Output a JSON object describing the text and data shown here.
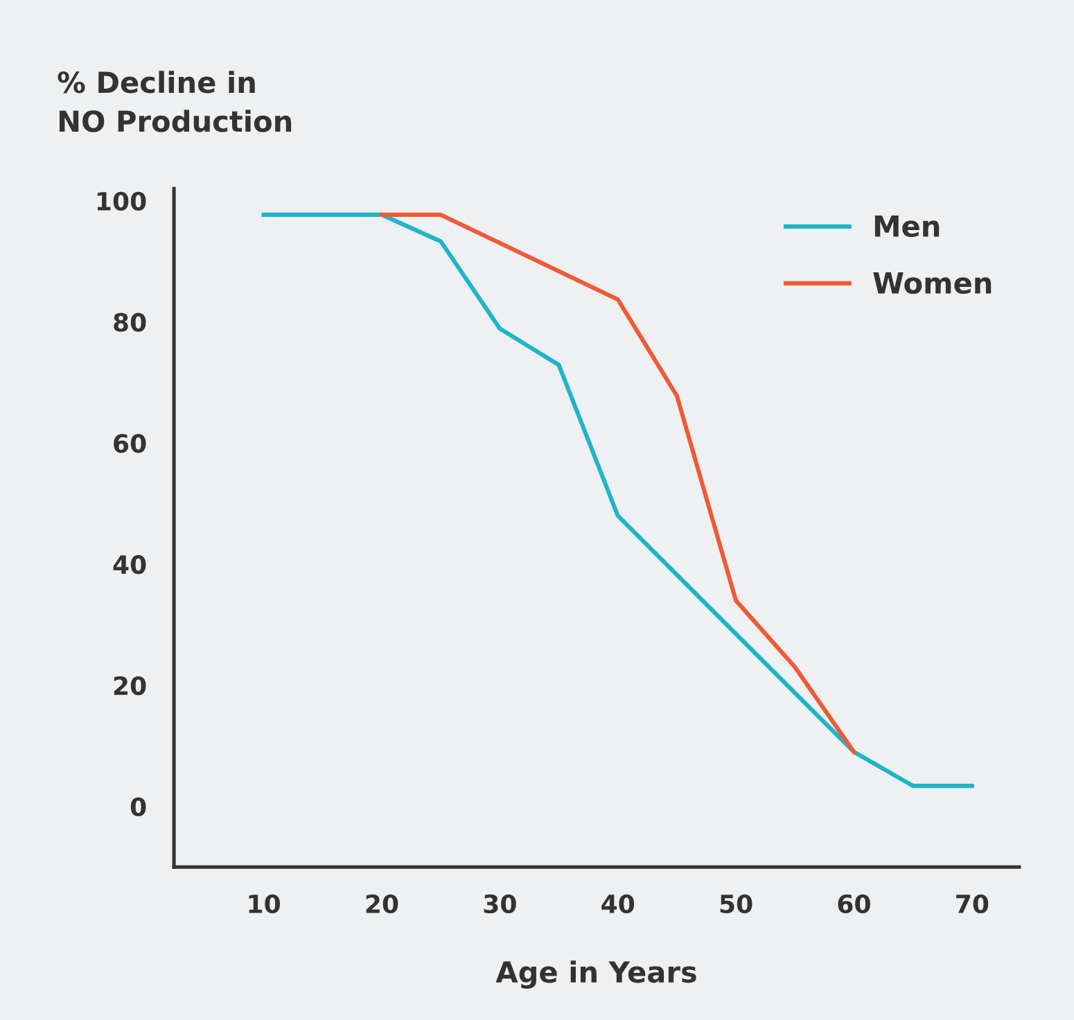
{
  "chart_data": {
    "type": "line",
    "xlabel": "Age in Years",
    "ylabel": "% Decline in\nNO Production",
    "xlim": [
      2.4,
      74
    ],
    "xticks": [
      10,
      20,
      30,
      40,
      50,
      60,
      70
    ],
    "ylim": [
      -10,
      102
    ],
    "yticks": [
      0,
      20,
      40,
      60,
      80,
      100
    ],
    "grid": false,
    "legend": "top right",
    "marker": "none",
    "line_style": "solid",
    "series": [
      {
        "name": "Men",
        "color": "#1fb5c9",
        "x": [
          10,
          20,
          25,
          30,
          35,
          40,
          60,
          65,
          70
        ],
        "values": [
          97.7,
          97.7,
          93.3,
          78.9,
          72.9,
          48,
          9,
          3.4,
          3.4
        ]
      },
      {
        "name": "Women",
        "color": "#ef5a37",
        "x": [
          20,
          25,
          40,
          45,
          50,
          55,
          60
        ],
        "values": [
          97.7,
          97.7,
          83.7,
          67.8,
          34,
          23,
          9
        ]
      }
    ]
  }
}
